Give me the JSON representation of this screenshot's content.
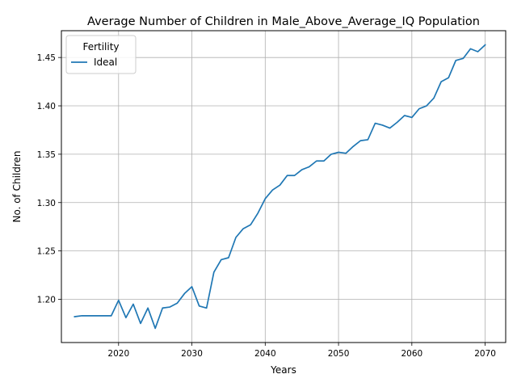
{
  "chart_data": {
    "type": "line",
    "title": "Average Number of Children in Male_Above_Average_IQ Population",
    "xlabel": "Years",
    "ylabel": "No. of Children",
    "xlim": [
      2012.2,
      2072.8
    ],
    "ylim": [
      1.1553,
      1.4777
    ],
    "xticks": [
      2020,
      2030,
      2040,
      2050,
      2060,
      2070
    ],
    "xtick_labels": [
      "2020",
      "2030",
      "2040",
      "2050",
      "2060",
      "2070"
    ],
    "yticks": [
      1.2,
      1.25,
      1.3,
      1.35,
      1.4,
      1.45
    ],
    "ytick_labels": [
      "1.20",
      "1.25",
      "1.30",
      "1.35",
      "1.40",
      "1.45"
    ],
    "grid": true,
    "legend": {
      "title": "Fertility",
      "position": "top-left"
    },
    "series": [
      {
        "name": "Ideal",
        "color": "#1f77b4",
        "x": [
          2014,
          2015,
          2016,
          2017,
          2018,
          2019,
          2020,
          2021,
          2022,
          2023,
          2024,
          2025,
          2026,
          2027,
          2028,
          2029,
          2030,
          2031,
          2032,
          2033,
          2034,
          2035,
          2036,
          2037,
          2038,
          2039,
          2040,
          2041,
          2042,
          2043,
          2044,
          2045,
          2046,
          2047,
          2048,
          2049,
          2050,
          2051,
          2052,
          2053,
          2054,
          2055,
          2056,
          2057,
          2058,
          2059,
          2060,
          2061,
          2062,
          2063,
          2064,
          2065,
          2066,
          2067,
          2068,
          2069,
          2070
        ],
        "y": [
          1.182,
          1.183,
          1.183,
          1.183,
          1.183,
          1.183,
          1.199,
          1.181,
          1.195,
          1.175,
          1.191,
          1.17,
          1.191,
          1.192,
          1.196,
          1.206,
          1.213,
          1.193,
          1.191,
          1.228,
          1.241,
          1.243,
          1.264,
          1.273,
          1.277,
          1.289,
          1.304,
          1.313,
          1.318,
          1.328,
          1.328,
          1.334,
          1.337,
          1.343,
          1.343,
          1.35,
          1.352,
          1.351,
          1.358,
          1.364,
          1.365,
          1.382,
          1.38,
          1.377,
          1.383,
          1.39,
          1.388,
          1.397,
          1.4,
          1.408,
          1.425,
          1.429,
          1.447,
          1.449,
          1.459,
          1.456,
          1.463
        ]
      }
    ]
  }
}
